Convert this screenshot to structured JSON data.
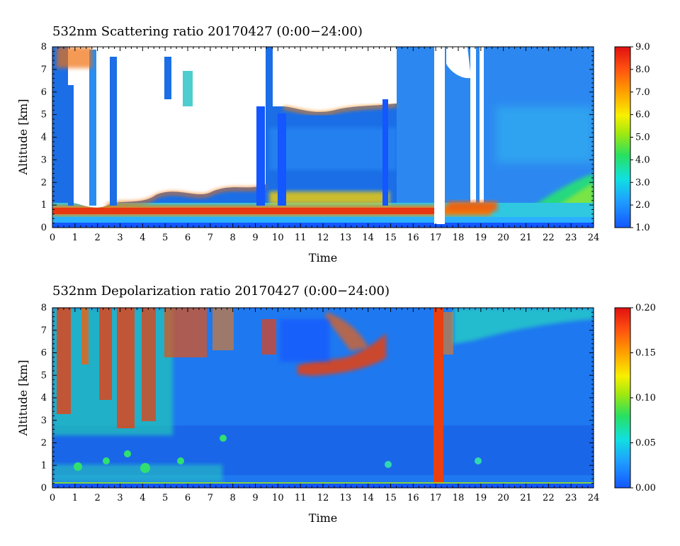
{
  "chart_data": [
    {
      "type": "heatmap",
      "title": "532nm Scattering ratio  20170427 (0:00−24:00)",
      "xlabel": "Time",
      "ylabel": "Altitude [km]",
      "xlim": [
        0,
        24
      ],
      "ylim": [
        0,
        8
      ],
      "x_ticks": [
        "0",
        "1",
        "2",
        "3",
        "4",
        "5",
        "6",
        "7",
        "8",
        "9",
        "10",
        "11",
        "12",
        "13",
        "14",
        "15",
        "16",
        "17",
        "18",
        "19",
        "20",
        "21",
        "22",
        "23",
        "24"
      ],
      "y_ticks": [
        "0",
        "1",
        "2",
        "3",
        "4",
        "5",
        "6",
        "7",
        "8"
      ],
      "colorbar": {
        "range": [
          1.0,
          9.0
        ],
        "ticks": [
          "1.0",
          "2.0",
          "3.0",
          "4.0",
          "5.0",
          "6.0",
          "7.0",
          "8.0",
          "9.0"
        ]
      },
      "features": {
        "near_surface_layer_km": [
          0.3,
          0.8
        ],
        "near_surface_value": 8.5,
        "background_value": 2.0,
        "cloud_top_region": {
          "x": [
            0,
            9.2
          ],
          "y_km": [
            2.3,
            8
          ],
          "value": "saturated"
        },
        "mid_cloud_region": {
          "x": [
            10.8,
            15.2
          ],
          "y_km": [
            5.3,
            8
          ],
          "value": "saturated"
        },
        "clear_columns_hours": [
          17.1,
          18.85
        ],
        "plume_region": {
          "x": [
            21.0,
            24.0
          ],
          "y_km": [
            0.8,
            2.5
          ],
          "value": 4.5
        }
      }
    },
    {
      "type": "heatmap",
      "title": "532nm Depolarization ratio  20170427 (0:00−24:00)",
      "xlabel": "Time",
      "ylabel": "Altitude [km]",
      "xlim": [
        0,
        24
      ],
      "ylim": [
        0,
        8
      ],
      "x_ticks": [
        "0",
        "1",
        "2",
        "3",
        "4",
        "5",
        "6",
        "7",
        "8",
        "9",
        "10",
        "11",
        "12",
        "13",
        "14",
        "15",
        "16",
        "17",
        "18",
        "19",
        "20",
        "21",
        "22",
        "23",
        "24"
      ],
      "y_ticks": [
        "0",
        "1",
        "2",
        "3",
        "4",
        "5",
        "6",
        "7",
        "8"
      ],
      "colorbar": {
        "range": [
          0.0,
          0.2
        ],
        "ticks": [
          "0.00",
          "0.05",
          "0.10",
          "0.15",
          "0.20"
        ]
      },
      "features": {
        "high_depol_region": {
          "x": [
            0,
            10
          ],
          "y_km": [
            4,
            8
          ],
          "value": 0.18
        },
        "mid_layer_region": {
          "x": [
            10.5,
            15.5
          ],
          "y_km": [
            5,
            6
          ],
          "value": 0.2
        },
        "high_depol_column_hour": 17.1,
        "background_value": 0.03
      }
    }
  ]
}
